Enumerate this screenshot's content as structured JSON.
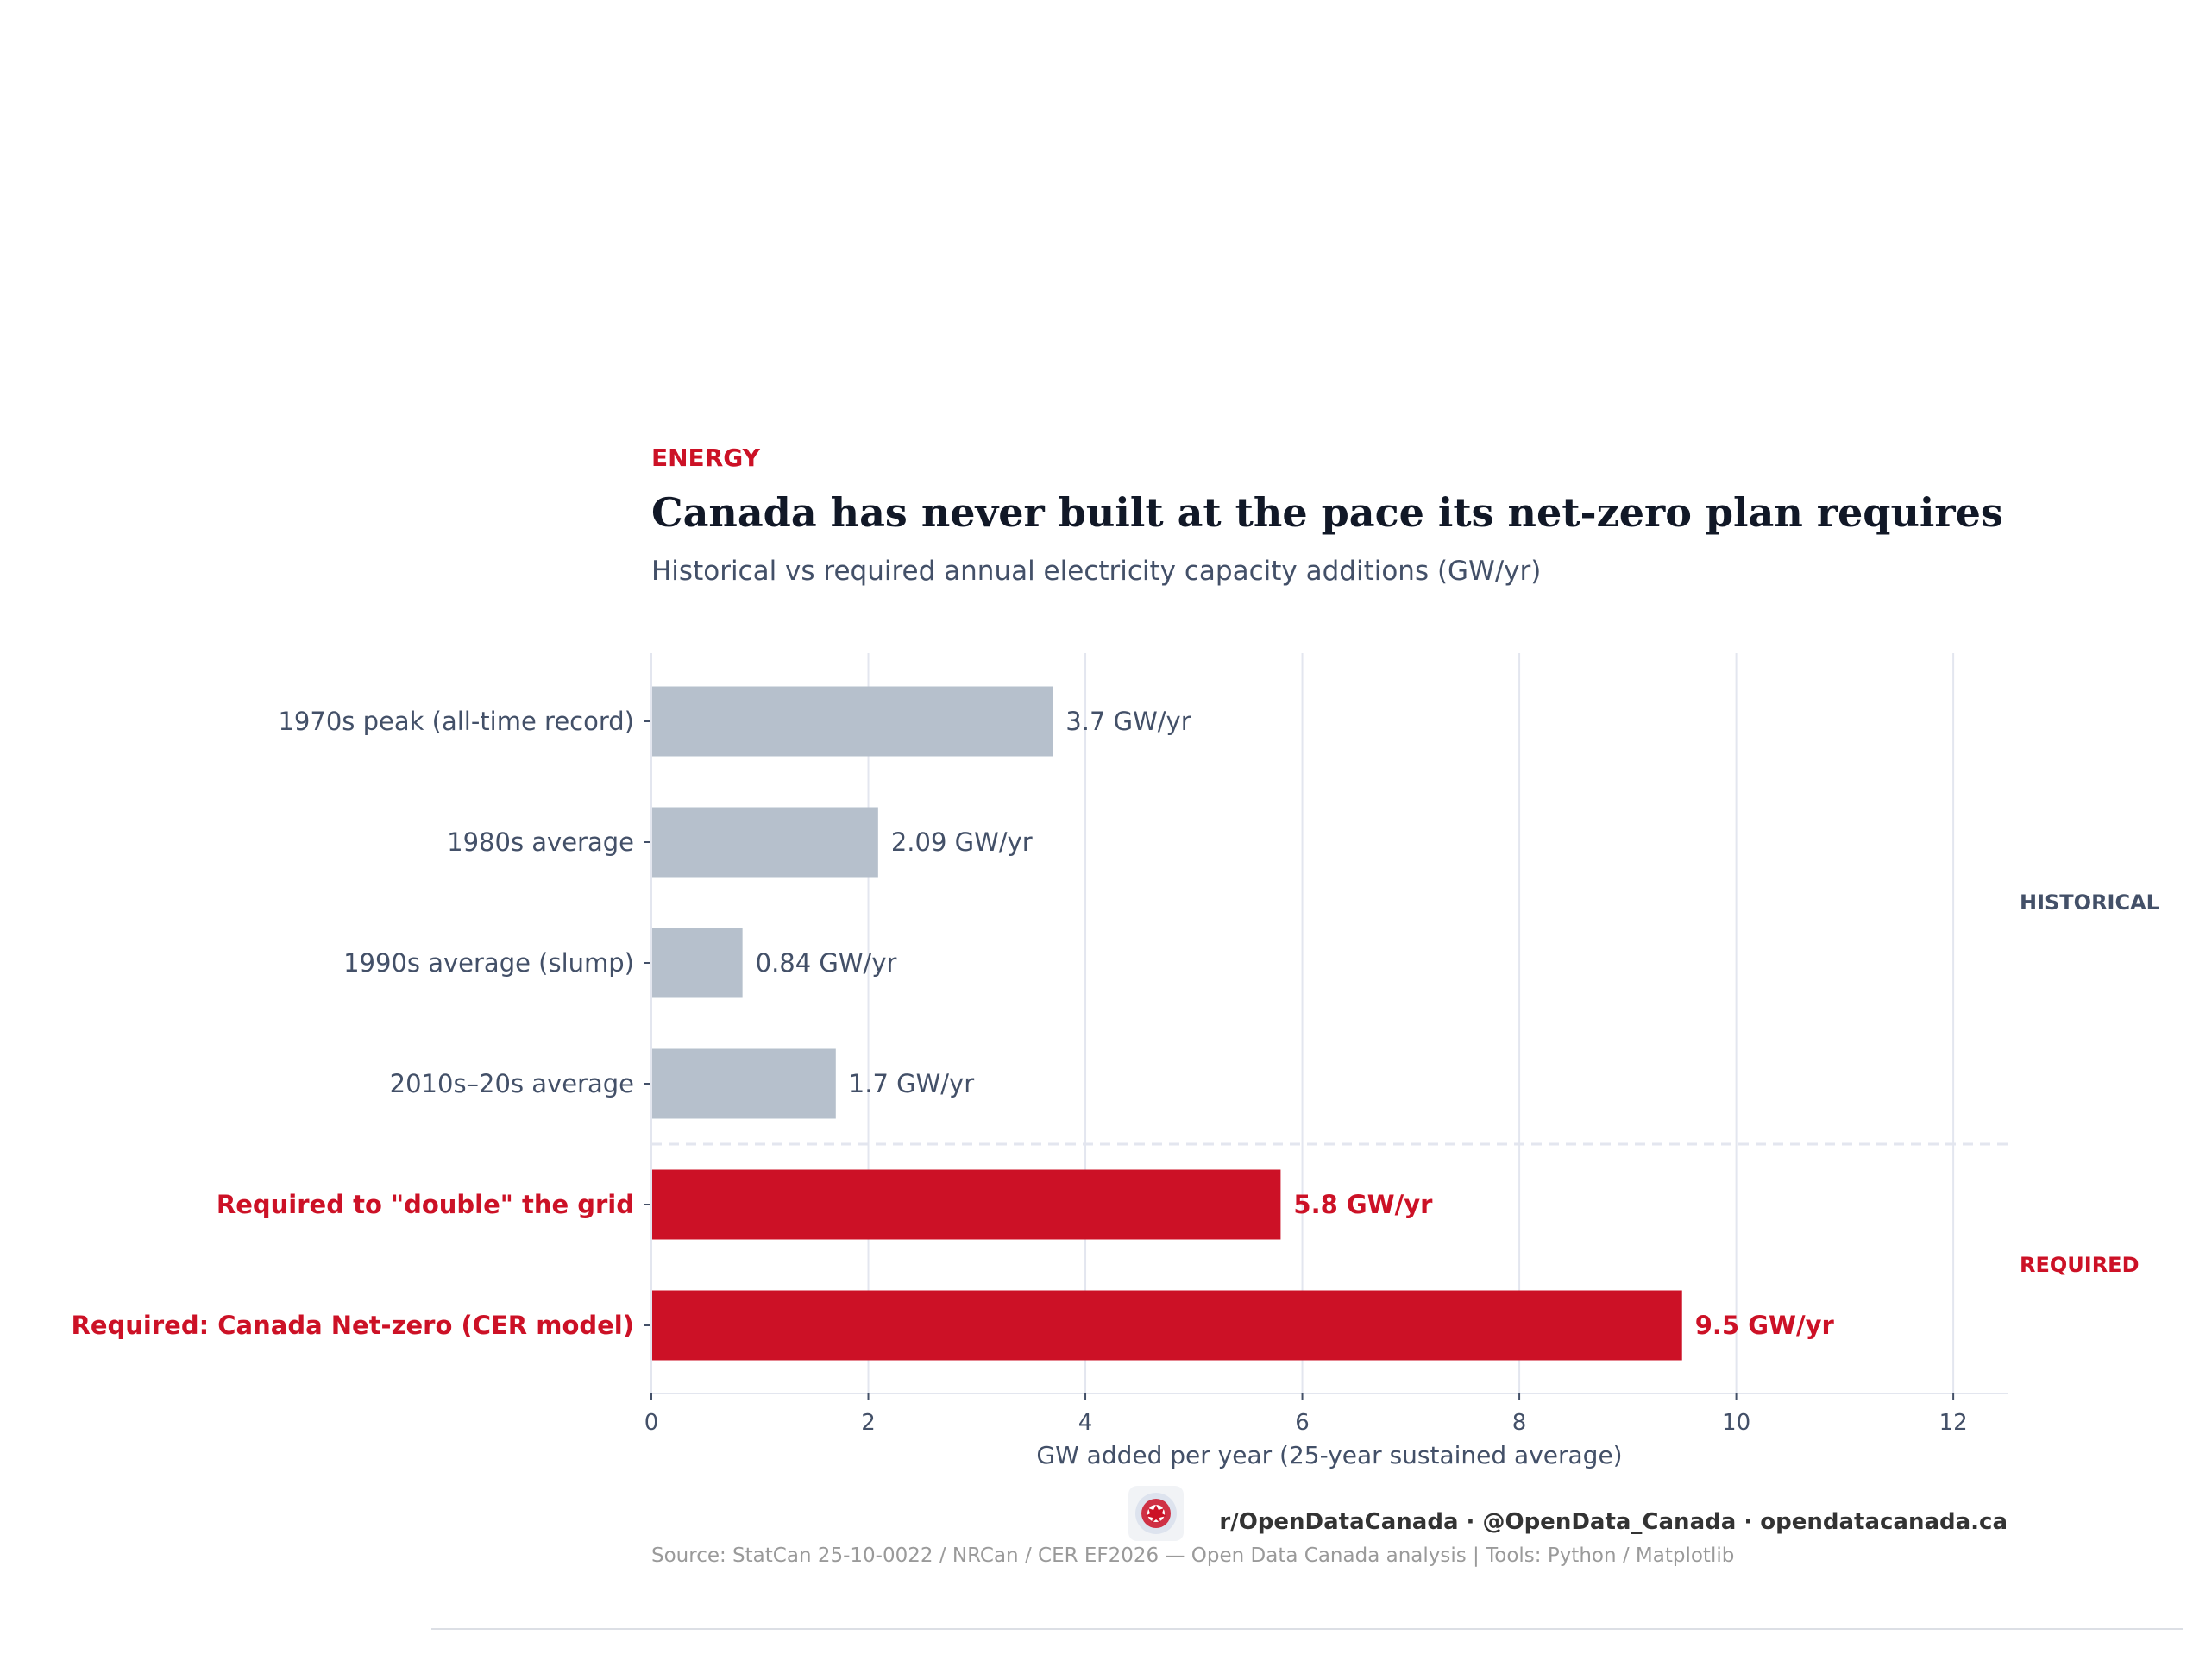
{
  "header": {
    "kicker": "ENERGY",
    "title": "Canada has never built at the pace its net-zero plan requires",
    "subtitle": "Historical vs required annual electricity capacity additions (GW/yr)"
  },
  "chart_data": {
    "type": "bar",
    "orientation": "horizontal",
    "categories": [
      "1970s peak (all-time record)",
      "1980s average",
      "1990s average (slump)",
      "2010s–20s average",
      "Required to \"double\" the grid",
      "Required: Canada Net-zero (CER model)"
    ],
    "values": [
      3.7,
      2.09,
      0.84,
      1.7,
      5.8,
      9.5
    ],
    "value_labels": [
      "3.7 GW/yr",
      "2.09 GW/yr",
      "0.84 GW/yr",
      "1.7 GW/yr",
      "5.8 GW/yr",
      "9.5 GW/yr"
    ],
    "groups": [
      "historical",
      "historical",
      "historical",
      "historical",
      "required",
      "required"
    ],
    "group_labels": {
      "historical": "HISTORICAL",
      "required": "REQUIRED"
    },
    "xlabel": "GW added per year (25-year sustained average)",
    "xlim": [
      0,
      12.5
    ],
    "xticks": [
      0,
      2,
      4,
      6,
      8,
      10,
      12
    ],
    "grid": "vertical",
    "colors": {
      "historical_bar": "#b6c0cc",
      "required_bar": "#cc1126",
      "historical_text": "#435068",
      "required_text": "#cc1126",
      "grid": "#e3e6ef"
    }
  },
  "footer": {
    "social": "r/OpenDataCanada  ·  @OpenData_Canada  ·  opendatacanada.ca",
    "source": "Source: StatCan 25-10-0022 / NRCan / CER EF2026 — Open Data Canada analysis  |  Tools: Python / Matplotlib",
    "logo_icon": "maple-leaf-logo-icon"
  }
}
